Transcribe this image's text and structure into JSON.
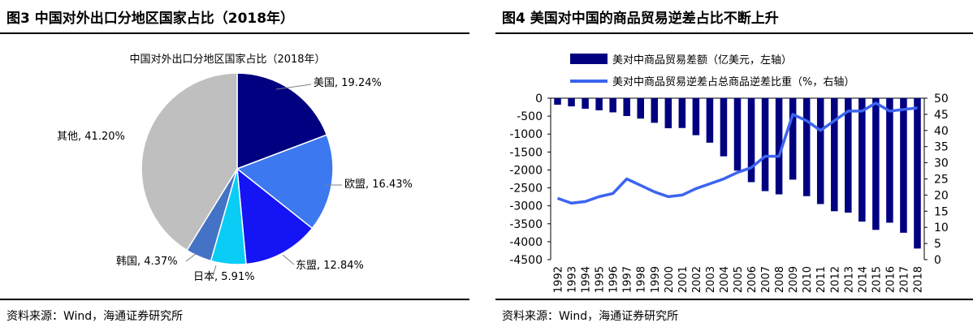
{
  "left_panel": {
    "title": "图3  中国对外出口分地区国家占比（2018年）",
    "source": "资料来源：Wind，海通证券研究所"
  },
  "right_panel": {
    "title": "图4  美国对中国的商品贸易逆差占比不断上升",
    "source": "资料来源：Wind，海通证券研究所"
  },
  "chart_data": [
    {
      "type": "pie",
      "title": "中国对外出口分地区国家占比（2018年）",
      "slices": [
        {
          "label": "美国",
          "value": 19.24,
          "value_text": "19.24%",
          "color": "#000080"
        },
        {
          "label": "欧盟",
          "value": 16.43,
          "value_text": "16.43%",
          "color": "#3c78f0"
        },
        {
          "label": "东盟",
          "value": 12.84,
          "value_text": "12.84%",
          "color": "#1414f5"
        },
        {
          "label": "日本",
          "value": 5.91,
          "value_text": "5.91%",
          "color": "#0acdf5"
        },
        {
          "label": "韩国",
          "value": 4.37,
          "value_text": "4.37%",
          "color": "#4472c4"
        },
        {
          "label": "其他",
          "value": 41.2,
          "value_text": "41.20%",
          "color": "#bfbfbf"
        }
      ]
    },
    {
      "type": "bar+line",
      "categories": [
        "1992",
        "1993",
        "1994",
        "1995",
        "1996",
        "1997",
        "1998",
        "1999",
        "2000",
        "2001",
        "2002",
        "2003",
        "2004",
        "2005",
        "2006",
        "2007",
        "2008",
        "2009",
        "2010",
        "2011",
        "2012",
        "2013",
        "2014",
        "2015",
        "2016",
        "2017",
        "2018"
      ],
      "series": [
        {
          "name": "美对中商品贸易差额（亿美元，左轴）",
          "type": "bar",
          "axis": "left",
          "color": "#000080",
          "values": [
            -183,
            -228,
            -295,
            -338,
            -395,
            -497,
            -569,
            -686,
            -838,
            -831,
            -1031,
            -1240,
            -1620,
            -2020,
            -2340,
            -2590,
            -2680,
            -2270,
            -2730,
            -2950,
            -3150,
            -3190,
            -3440,
            -3670,
            -3470,
            -3750,
            -4190
          ]
        },
        {
          "name": "美对中商品贸易逆差占总商品逆差比重（%，右轴）",
          "type": "line",
          "axis": "right",
          "color": "#3c64f0",
          "values": [
            19,
            17.5,
            18,
            19.5,
            20.5,
            25,
            23,
            21,
            19.5,
            20,
            22,
            23.5,
            25,
            27,
            28.5,
            32,
            32,
            45,
            43,
            40,
            43,
            46,
            46,
            48.5,
            46,
            46.5,
            47
          ]
        }
      ],
      "left_axis": {
        "min": -4500,
        "max": 0,
        "ticks": [
          "0",
          "-500",
          "-1000",
          "-1500",
          "-2000",
          "-2500",
          "-3000",
          "-3500",
          "-4000",
          "-4500"
        ]
      },
      "right_axis": {
        "min": 0,
        "max": 50,
        "ticks": [
          "50",
          "45",
          "40",
          "35",
          "30",
          "25",
          "20",
          "15",
          "10",
          "5",
          "0"
        ]
      },
      "grid": false,
      "legend_position": "top"
    }
  ]
}
